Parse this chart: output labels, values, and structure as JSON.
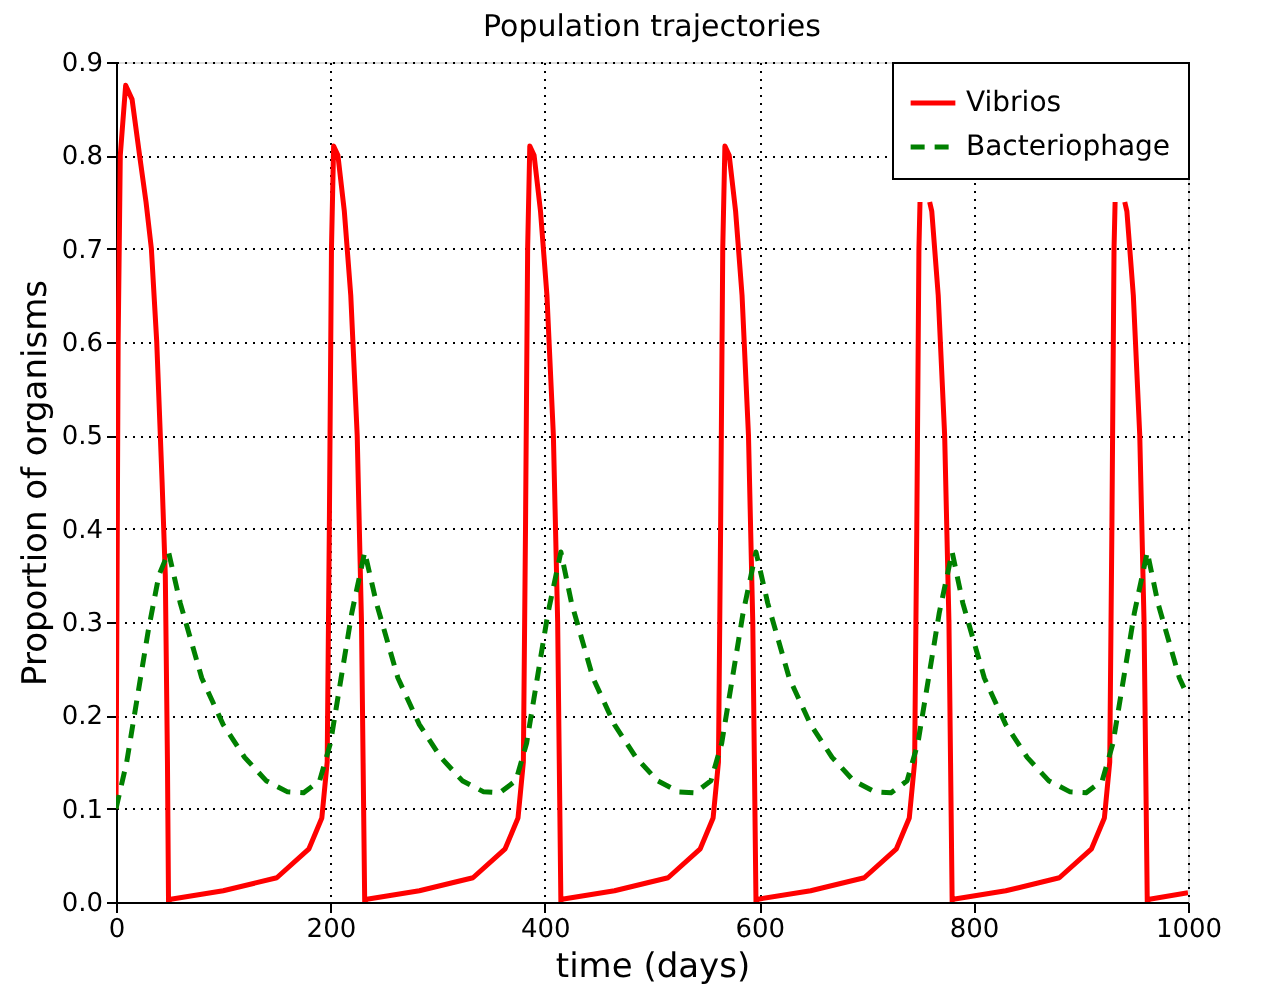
{
  "chart_data": {
    "type": "line",
    "title": "Population trajectories",
    "xlabel": "time (days)",
    "ylabel": "Proportion of organisms",
    "xlim": [
      0,
      1000
    ],
    "xticks": [
      0,
      200,
      400,
      600,
      800,
      1000
    ],
    "ylim": [
      0,
      0.9
    ],
    "yticks": [
      {
        "value": 0,
        "label": "0.0"
      },
      0.1,
      0.2,
      0.3,
      0.4,
      0.5,
      0.6,
      0.7,
      0.8,
      0.9
    ],
    "grid": true,
    "legend": "top right",
    "marker": "none",
    "series": [
      {
        "name": "Vibrios",
        "color": "#ff0000",
        "line_style": "solid",
        "x": [
          0,
          1,
          2,
          4,
          9,
          15,
          22,
          28,
          33,
          38,
          43,
          46,
          48,
          49,
          51,
          100,
          150,
          180,
          192,
          197,
          199,
          201,
          203,
          207,
          213,
          219,
          225,
          229,
          231,
          232,
          234,
          283,
          333,
          363,
          375,
          380,
          382,
          384,
          386,
          390,
          396,
          402,
          408,
          412,
          414,
          415,
          416,
          465,
          515,
          545,
          557,
          562,
          564,
          566,
          568,
          572,
          578,
          584,
          590,
          594,
          596,
          597,
          599,
          648,
          698,
          728,
          740,
          745,
          747,
          749,
          750,
          751,
          755,
          759,
          761,
          767,
          773,
          777,
          779,
          780,
          781,
          830,
          880,
          910,
          922,
          927,
          929,
          931,
          932,
          933,
          937,
          941,
          943,
          949,
          955,
          959,
          961,
          962,
          964,
          1000
        ],
        "values": [
          0.1,
          0.35,
          0.6,
          0.8,
          0.875,
          0.86,
          0.8,
          0.75,
          0.7,
          0.6,
          0.45,
          0.35,
          0.15,
          0.0,
          0.003,
          0.012,
          0.026,
          0.057,
          0.09,
          0.15,
          0.4,
          0.7,
          0.81,
          0.8,
          0.74,
          0.65,
          0.5,
          0.3,
          0.1,
          0.0,
          0.003,
          0.012,
          0.026,
          0.057,
          0.09,
          0.15,
          0.4,
          0.7,
          0.81,
          0.8,
          0.74,
          0.65,
          0.5,
          0.3,
          0.1,
          0.0,
          0.003,
          0.012,
          0.026,
          0.057,
          0.09,
          0.15,
          0.4,
          0.7,
          0.81,
          0.8,
          0.74,
          0.65,
          0.5,
          0.3,
          0.1,
          0.0,
          0.003,
          0.012,
          0.026,
          0.057,
          0.09,
          0.15,
          0.4,
          0.7,
          0.75,
          null,
          null,
          0.75,
          0.74,
          0.65,
          0.5,
          0.3,
          0.1,
          0.0,
          0.003,
          0.012,
          0.026,
          0.057,
          0.09,
          0.15,
          0.4,
          0.7,
          0.75,
          null,
          null,
          0.75,
          0.74,
          0.65,
          0.5,
          0.3,
          0.1,
          0.0,
          0.003,
          0.01
        ]
      },
      {
        "name": "Bacteriophage",
        "color": "#008000",
        "line_style": "dashed",
        "x": [
          0,
          10,
          20,
          30,
          40,
          49,
          60,
          80,
          100,
          120,
          140,
          160,
          175,
          190,
          200,
          210,
          220,
          232,
          243,
          263,
          283,
          303,
          323,
          343,
          358,
          373,
          383,
          393,
          403,
          415,
          425,
          445,
          465,
          485,
          505,
          525,
          540,
          555,
          565,
          575,
          585,
          597,
          608,
          628,
          648,
          668,
          688,
          708,
          723,
          738,
          748,
          758,
          768,
          780,
          790,
          810,
          830,
          850,
          870,
          890,
          905,
          920,
          930,
          940,
          950,
          962,
          972,
          992,
          1000
        ],
        "values": [
          0.1,
          0.15,
          0.22,
          0.29,
          0.35,
          0.375,
          0.32,
          0.24,
          0.19,
          0.155,
          0.13,
          0.118,
          0.117,
          0.13,
          0.17,
          0.24,
          0.31,
          0.375,
          0.32,
          0.24,
          0.19,
          0.155,
          0.13,
          0.118,
          0.117,
          0.13,
          0.17,
          0.24,
          0.31,
          0.375,
          0.32,
          0.24,
          0.19,
          0.155,
          0.13,
          0.118,
          0.117,
          0.13,
          0.17,
          0.24,
          0.31,
          0.375,
          0.32,
          0.24,
          0.19,
          0.155,
          0.13,
          0.118,
          0.117,
          0.13,
          0.17,
          0.24,
          0.31,
          0.375,
          0.32,
          0.24,
          0.19,
          0.155,
          0.13,
          0.118,
          0.117,
          0.13,
          0.17,
          0.24,
          0.31,
          0.375,
          0.32,
          0.24,
          0.22
        ]
      }
    ]
  }
}
